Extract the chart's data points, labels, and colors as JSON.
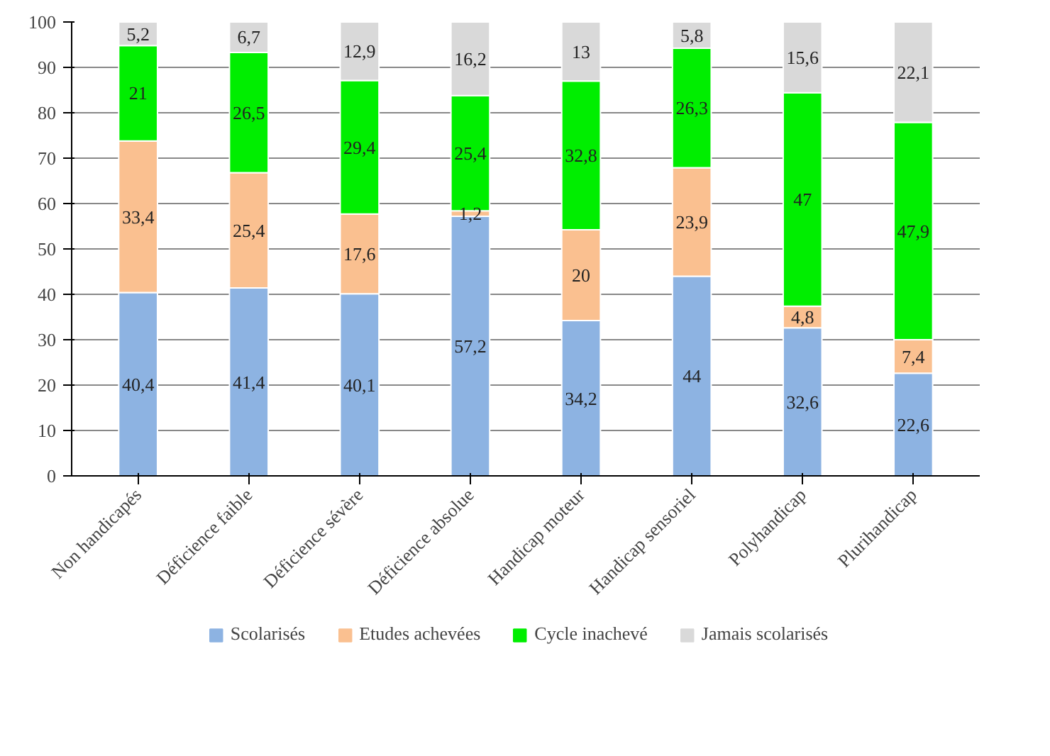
{
  "chart_data": {
    "type": "bar",
    "stacked": true,
    "categories": [
      "Non handicapés",
      "Déficience faible",
      "Déficience sévère",
      "Déficience absolue",
      "Handicap moteur",
      "Handicap sensoriel",
      "Polyhandicap",
      "Plurihandicap"
    ],
    "series": [
      {
        "name": "Scolarisés",
        "color": "#8db3e2",
        "values": [
          40.4,
          41.4,
          40.1,
          57.2,
          34.2,
          44,
          32.6,
          22.6
        ],
        "value_labels": [
          "40,4",
          "41,4",
          "40,1",
          "57,2",
          "34,2",
          "44",
          "32,6",
          "22,6"
        ]
      },
      {
        "name": "Etudes achevées",
        "color": "#fac090",
        "values": [
          33.4,
          25.4,
          17.6,
          1.2,
          20,
          23.9,
          4.8,
          7.4
        ],
        "value_labels": [
          "33,4",
          "25,4",
          "17,6",
          "1,2",
          "20",
          "23,9",
          "4,8",
          "7,4"
        ]
      },
      {
        "name": "Cycle inachevé",
        "color": "#00ee00",
        "values": [
          21,
          26.5,
          29.4,
          25.4,
          32.8,
          26.3,
          47,
          47.9
        ],
        "value_labels": [
          "21",
          "26,5",
          "29,4",
          "25,4",
          "32,8",
          "26,3",
          "47",
          "47,9"
        ]
      },
      {
        "name": "Jamais scolarisés",
        "color": "#d9d9d9",
        "values": [
          5.2,
          6.7,
          12.9,
          16.2,
          13,
          5.8,
          15.6,
          22.1
        ],
        "value_labels": [
          "5,2",
          "6,7",
          "12,9",
          "16,2",
          "13",
          "5,8",
          "15,6",
          "22,1"
        ]
      }
    ],
    "ylim": [
      0,
      100
    ],
    "yticks": [
      0,
      10,
      20,
      30,
      40,
      50,
      60,
      70,
      80,
      90,
      100
    ],
    "grid": "y",
    "legend": "bottom"
  }
}
